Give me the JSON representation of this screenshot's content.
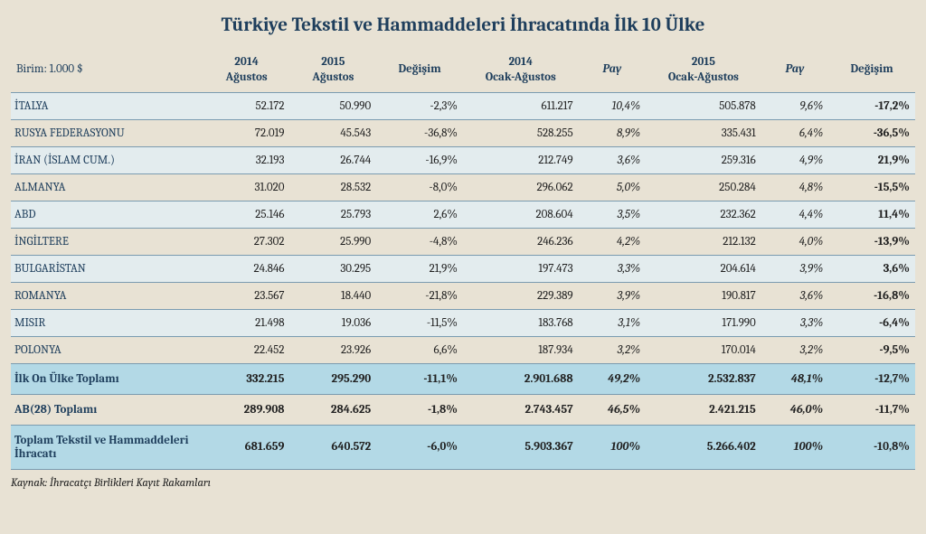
{
  "title": "Türkiye Tekstil ve Hammaddeleri İhracatında İlk 10 Ülke",
  "unit_label": "Birim: 1.000 $",
  "columns": {
    "c1a": "2014",
    "c1b": "Ağustos",
    "c2a": "2015",
    "c2b": "Ağustos",
    "c3": "Değişim",
    "c4a": "2014",
    "c4b": "Ocak-Ağustos",
    "c5": "Pay",
    "c6a": "2015",
    "c6b": "Ocak-Ağustos",
    "c7": "Pay",
    "c8": "Değişim"
  },
  "rows": [
    {
      "name": "İTALYA",
      "v1": "52.172",
      "v2": "50.990",
      "v3": "-2,3%",
      "v4": "611.217",
      "v5": "10,4%",
      "v6": "505.878",
      "v7": "9,6%",
      "v8": "-17,2%"
    },
    {
      "name": "RUSYA FEDERASYONU",
      "v1": "72.019",
      "v2": "45.543",
      "v3": "-36,8%",
      "v4": "528.255",
      "v5": "8,9%",
      "v6": "335.431",
      "v7": "6,4%",
      "v8": "-36,5%"
    },
    {
      "name": "İRAN (İSLAM CUM.)",
      "v1": "32.193",
      "v2": "26.744",
      "v3": "-16,9%",
      "v4": "212.749",
      "v5": "3,6%",
      "v6": "259.316",
      "v7": "4,9%",
      "v8": "21,9%"
    },
    {
      "name": "ALMANYA",
      "v1": "31.020",
      "v2": "28.532",
      "v3": "-8,0%",
      "v4": "296.062",
      "v5": "5,0%",
      "v6": "250.284",
      "v7": "4,8%",
      "v8": "-15,5%"
    },
    {
      "name": "ABD",
      "v1": "25.146",
      "v2": "25.793",
      "v3": "2,6%",
      "v4": "208.604",
      "v5": "3,5%",
      "v6": "232.362",
      "v7": "4,4%",
      "v8": "11,4%"
    },
    {
      "name": "İNGİLTERE",
      "v1": "27.302",
      "v2": "25.990",
      "v3": "-4,8%",
      "v4": "246.236",
      "v5": "4,2%",
      "v6": "212.132",
      "v7": "4,0%",
      "v8": "-13,9%"
    },
    {
      "name": "BULGARİSTAN",
      "v1": "24.846",
      "v2": "30.295",
      "v3": "21,9%",
      "v4": "197.473",
      "v5": "3,3%",
      "v6": "204.614",
      "v7": "3,9%",
      "v8": "3,6%"
    },
    {
      "name": "ROMANYA",
      "v1": "23.567",
      "v2": "18.440",
      "v3": "-21,8%",
      "v4": "229.389",
      "v5": "3,9%",
      "v6": "190.817",
      "v7": "3,6%",
      "v8": "-16,8%"
    },
    {
      "name": "MISIR",
      "v1": "21.498",
      "v2": "19.036",
      "v3": "-11,5%",
      "v4": "183.768",
      "v5": "3,1%",
      "v6": "171.990",
      "v7": "3,3%",
      "v8": "-6,4%"
    },
    {
      "name": "POLONYA",
      "v1": "22.452",
      "v2": "23.926",
      "v3": "6,6%",
      "v4": "187.934",
      "v5": "3,2%",
      "v6": "170.014",
      "v7": "3,2%",
      "v8": "-9,5%"
    }
  ],
  "summary": [
    {
      "name": "İlk On Ülke Toplamı",
      "v1": "332.215",
      "v2": "295.290",
      "v3": "-11,1%",
      "v4": "2.901.688",
      "v5": "49,2%",
      "v6": "2.532.837",
      "v7": "48,1%",
      "v8": "-12,7%"
    },
    {
      "name": "AB(28) Toplamı",
      "v1": "289.908",
      "v2": "284.625",
      "v3": "-1,8%",
      "v4": "2.743.457",
      "v5": "46,5%",
      "v6": "2.421.215",
      "v7": "46,0%",
      "v8": "-11,7%"
    },
    {
      "name": "Toplam Tekstil ve Hammaddeleri İhracatı",
      "v1": "681.659",
      "v2": "640.572",
      "v3": "-6,0%",
      "v4": "5.903.367",
      "v5": "100%",
      "v6": "5.266.402",
      "v7": "100%",
      "v8": "-10,8%"
    }
  ],
  "source": "Kaynak: İhracatçı Birlikleri Kayıt Rakamları",
  "style": {
    "type": "table",
    "background_color": "#e8e2d4",
    "header_text_color": "#1e3e5c",
    "row_border_color": "#7a9bb0",
    "band_light": "#e3ecee",
    "band_blue": "#b3d9e6",
    "title_fontsize": 21,
    "body_fontsize": 13,
    "italic_columns": [
      "v5",
      "v7"
    ],
    "bold_columns_last": [
      "v8"
    ]
  }
}
